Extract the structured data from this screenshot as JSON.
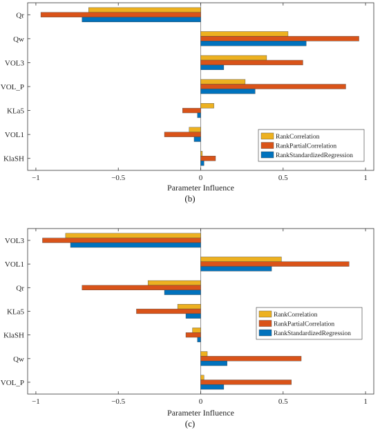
{
  "colors": {
    "rank_correlation": "#EDB120",
    "rank_partial_correlation": "#D95319",
    "rank_standardized_regression": "#0072BD",
    "axis": "#333333",
    "bar_edge": "#444444"
  },
  "chart_data": [
    {
      "type": "bar",
      "orientation": "horizontal",
      "panel_label": "(b)",
      "xlabel": "Parameter Influence",
      "ylabel": "",
      "xlim": [
        -1.05,
        1.05
      ],
      "x_ticks": [
        "-1",
        "-0.5",
        "0",
        "0.5",
        "1"
      ],
      "grid": false,
      "legend_position": "bottom-right",
      "categories": [
        "Qr",
        "Qw",
        "VOL3",
        "VOL_P",
        "KLa5",
        "VOL1",
        "KlaSH"
      ],
      "series": [
        {
          "name": "RankCorrelation",
          "values": [
            -0.68,
            0.53,
            0.4,
            0.27,
            0.08,
            -0.07,
            0.01
          ]
        },
        {
          "name": "RankPartialCorrelation",
          "values": [
            -0.97,
            0.96,
            0.62,
            0.88,
            -0.11,
            -0.22,
            0.09
          ]
        },
        {
          "name": "RankStandardizedRegression",
          "values": [
            -0.72,
            0.64,
            0.14,
            0.33,
            -0.02,
            -0.04,
            0.02
          ]
        }
      ]
    },
    {
      "type": "bar",
      "orientation": "horizontal",
      "panel_label": "(c)",
      "xlabel": "Parameter Influence",
      "ylabel": "",
      "xlim": [
        -1.05,
        1.05
      ],
      "x_ticks": [
        "-1",
        "-0.5",
        "0",
        "0.5",
        "1"
      ],
      "grid": false,
      "legend_position": "center-right",
      "categories": [
        "VOL3",
        "VOL1",
        "Qr",
        "KLa5",
        "KlaSH",
        "Qw",
        "VOL_P"
      ],
      "series": [
        {
          "name": "RankCorrelation",
          "values": [
            -0.82,
            0.49,
            -0.32,
            -0.14,
            -0.05,
            0.04,
            0.02
          ]
        },
        {
          "name": "RankPartialCorrelation",
          "values": [
            -0.96,
            0.9,
            -0.72,
            -0.39,
            -0.09,
            0.61,
            0.55
          ]
        },
        {
          "name": "RankStandardizedRegression",
          "values": [
            -0.79,
            0.43,
            -0.22,
            -0.09,
            -0.02,
            0.16,
            0.14
          ]
        }
      ]
    }
  ]
}
